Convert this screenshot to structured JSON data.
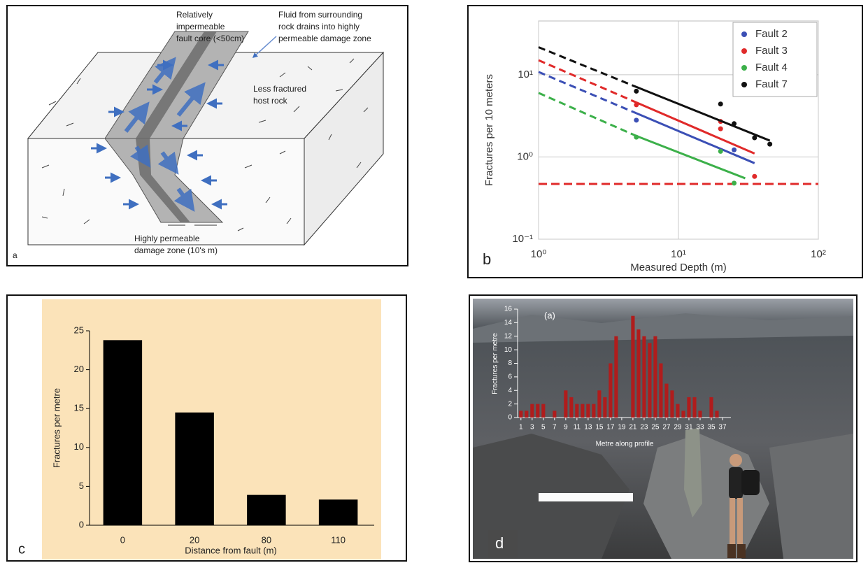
{
  "diagram": {
    "panel_label": "a",
    "labels": [
      [
        "Relatively",
        "impermeable",
        "fault core (<50cm)"
      ],
      [
        "Fluid from surrounding",
        "rock drains into highly",
        "permeable damage zone"
      ],
      [
        "Less fractured",
        "host rock"
      ],
      [
        "Highly permeable",
        "damage zone (10's m)"
      ]
    ]
  },
  "chart_data": [
    {
      "type": "scatter",
      "panel_label": "b",
      "x_label": "Measured Depth (m)",
      "y_label": "Fractures per 10 meters",
      "log_x": true,
      "log_y": true,
      "xlim": [
        1,
        100
      ],
      "ylim": [
        0.1,
        45
      ],
      "xticks": [
        {
          "value": 1,
          "label": "10⁰"
        },
        {
          "value": 10,
          "label": "10¹"
        },
        {
          "value": 100,
          "label": "10²"
        }
      ],
      "yticks": [
        {
          "value": 0.1,
          "label": "10⁻¹"
        },
        {
          "value": 1,
          "label": "10⁰"
        },
        {
          "value": 10,
          "label": "10¹"
        }
      ],
      "grid": true,
      "legend": "upper right",
      "series": [
        {
          "name": "Fault 2",
          "color": "#3b4fb5",
          "x": [
            5,
            25
          ],
          "values": [
            2.8,
            1.22
          ],
          "fit_x": [
            1,
            5,
            35
          ],
          "fit": [
            10.8,
            3.4,
            0.84
          ]
        },
        {
          "name": "Fault 3",
          "color": "#e02a2a",
          "x": [
            5,
            20,
            20,
            35
          ],
          "values": [
            4.3,
            2.7,
            2.2,
            0.58
          ],
          "fit_x": [
            1,
            5,
            35
          ],
          "fit": [
            15,
            4.6,
            1.1
          ]
        },
        {
          "name": "Fault 4",
          "color": "#3cb04a",
          "x": [
            5,
            20,
            25
          ],
          "values": [
            1.74,
            1.17,
            0.48
          ],
          "fit_x": [
            1,
            5,
            30
          ],
          "fit": [
            6,
            1.8,
            0.55
          ]
        },
        {
          "name": "Fault 7",
          "color": "#111111",
          "x": [
            5,
            20,
            25,
            35,
            45
          ],
          "values": [
            6.3,
            4.4,
            2.54,
            1.71,
            1.43
          ],
          "fit_x": [
            1,
            5,
            45
          ],
          "fit": [
            21.6,
            7.1,
            1.58
          ]
        }
      ],
      "reference_line": {
        "value": 0.47,
        "color": "#e02a2a"
      }
    },
    {
      "type": "bar",
      "panel_label": "c",
      "x_label": "Distance from fault (m)",
      "y_label": "Fractures per metre",
      "categories": [
        "0",
        "20",
        "80",
        "110"
      ],
      "values": [
        23.8,
        14.5,
        3.9,
        3.3
      ],
      "color": "#000000",
      "background": "#fbe3b9",
      "ylim": [
        0,
        25
      ],
      "yticks": [
        0,
        5,
        10,
        15,
        20,
        25
      ]
    },
    {
      "type": "bar",
      "panel_label": "d",
      "annotation": "(a)",
      "x_label": "Metre along profile",
      "y_label": "Fractures per metre",
      "x": [
        1,
        2,
        3,
        4,
        5,
        6,
        7,
        8,
        9,
        10,
        11,
        12,
        13,
        14,
        15,
        16,
        17,
        18,
        19,
        20,
        21,
        22,
        23,
        24,
        25,
        26,
        27,
        28,
        29,
        30,
        31,
        32,
        33,
        34,
        35,
        36,
        37,
        38
      ],
      "values": [
        1,
        1,
        2,
        2,
        2,
        0,
        1,
        0,
        4,
        3,
        2,
        2,
        2,
        2,
        4,
        3,
        8,
        12,
        0,
        0,
        15,
        13,
        12,
        11,
        12,
        8,
        5,
        4,
        2,
        1,
        3,
        3,
        1,
        0,
        3,
        1,
        0,
        0
      ],
      "color": "#b01c1c",
      "xlim": [
        0.4,
        38.5
      ],
      "ylim": [
        0,
        16
      ],
      "xticks": [
        1,
        3,
        5,
        7,
        9,
        11,
        13,
        15,
        17,
        19,
        21,
        23,
        25,
        27,
        29,
        31,
        33,
        35,
        37
      ],
      "yticks": [
        0,
        2,
        4,
        6,
        8,
        10,
        12,
        14,
        16
      ]
    }
  ]
}
